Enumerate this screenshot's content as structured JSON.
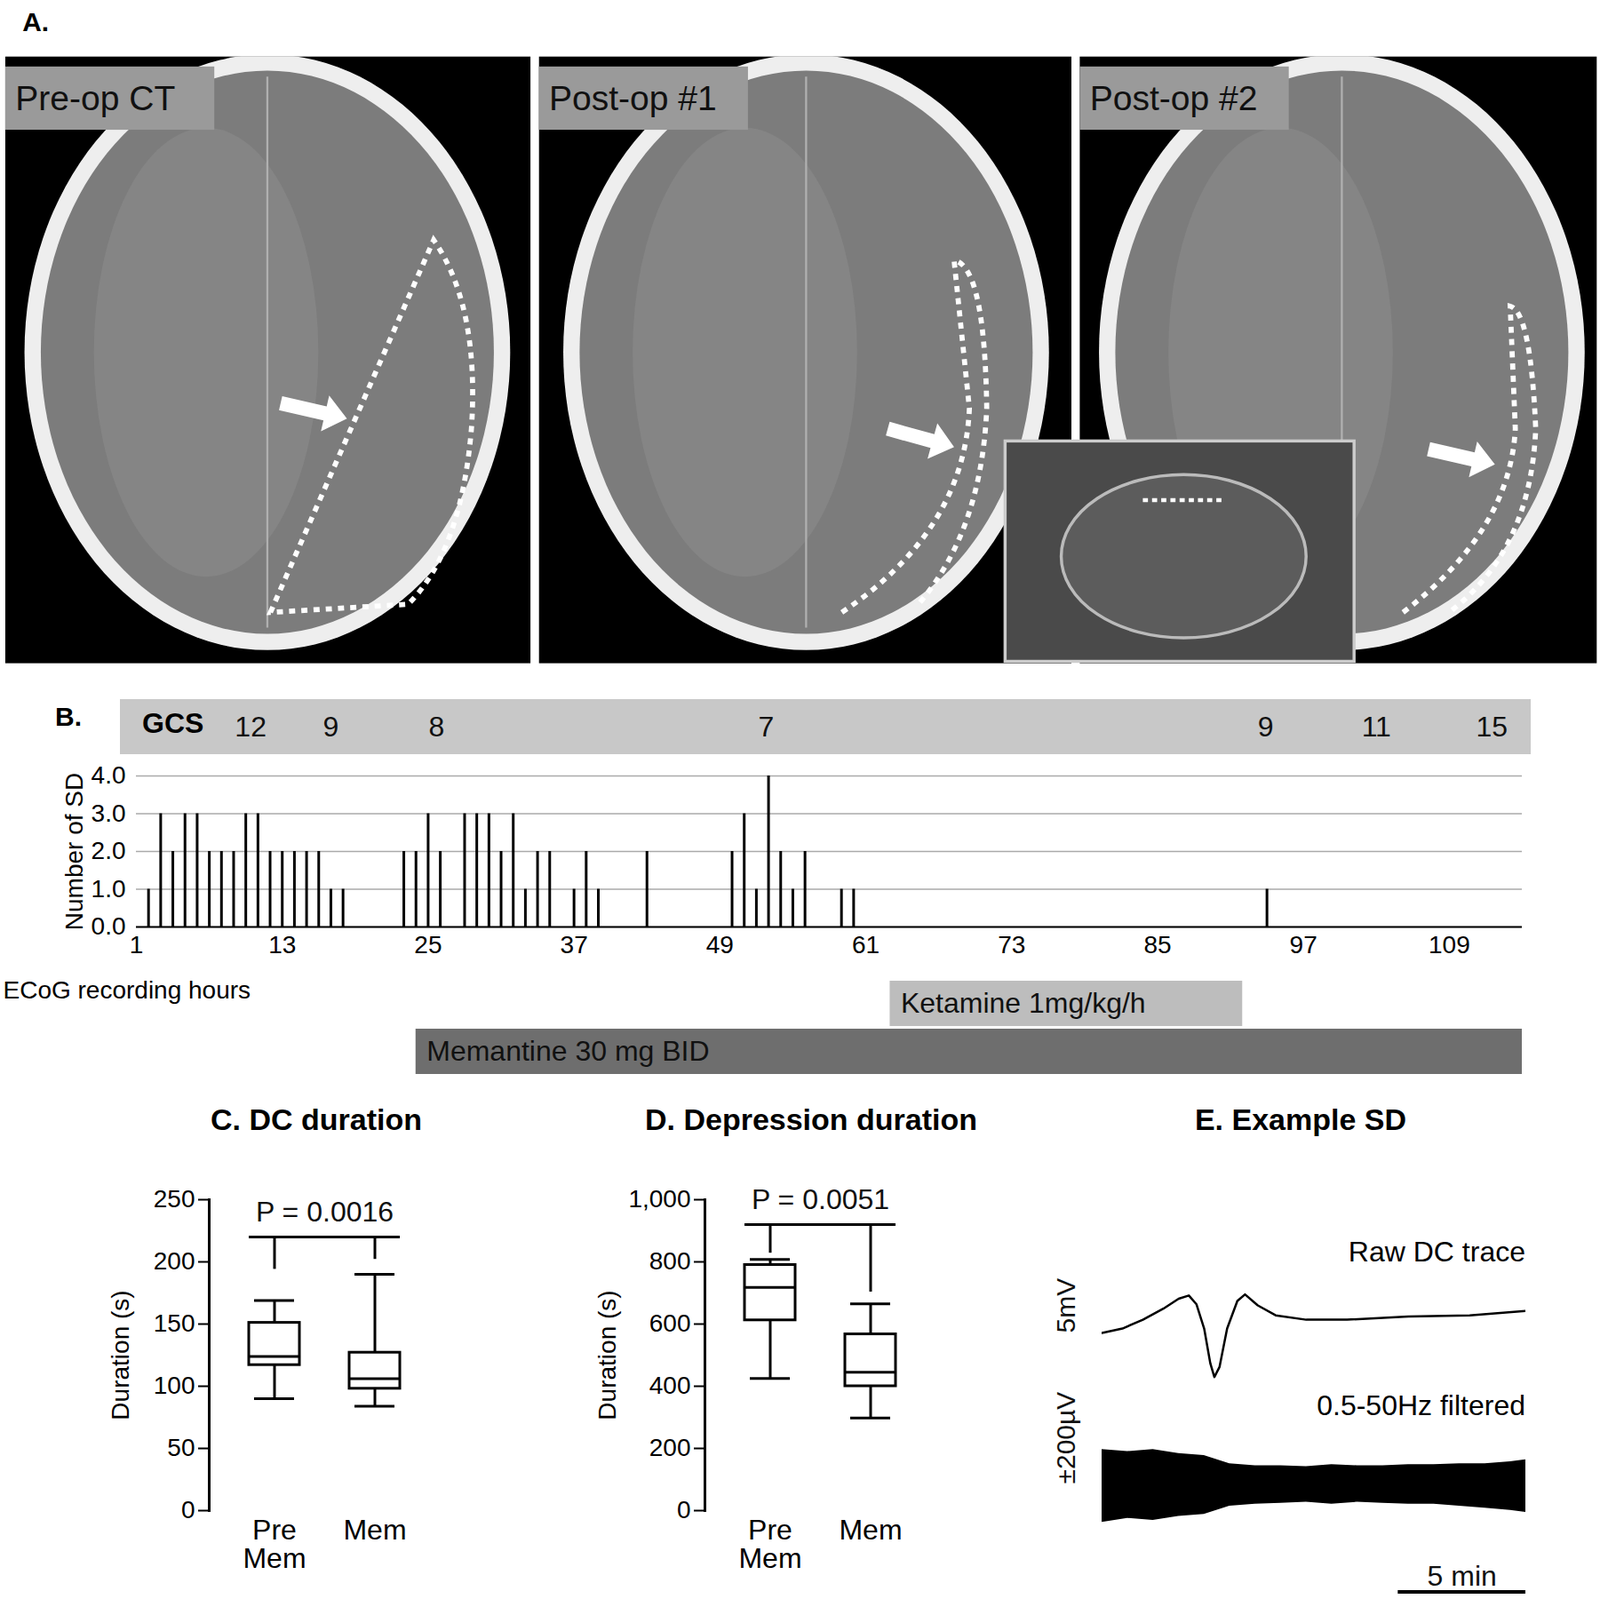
{
  "panel_a": {
    "title": "A.",
    "images": [
      {
        "label": "Pre-op CT"
      },
      {
        "label": "Post-op #1"
      },
      {
        "label": "Post-op #2"
      }
    ]
  },
  "chart_data": [
    {
      "type": "bar",
      "title": "B.",
      "x_label": "ECoG recording hours",
      "y_label": "Number of SD",
      "x": [
        2,
        3,
        4,
        5,
        6,
        7,
        8,
        9,
        10,
        11,
        12,
        13,
        14,
        15,
        16,
        17,
        18,
        23,
        24,
        25,
        26,
        28,
        29,
        30,
        31,
        32,
        33,
        34,
        35,
        37,
        38,
        39,
        43,
        50,
        51,
        52,
        53,
        54,
        55,
        56,
        59,
        60,
        94
      ],
      "values": [
        1,
        3,
        2,
        3,
        3,
        2,
        2,
        2,
        3,
        3,
        2,
        2,
        2,
        2,
        2,
        1,
        1,
        2,
        2,
        3,
        2,
        3,
        3,
        3,
        2,
        3,
        1,
        2,
        2,
        1,
        2,
        1,
        2,
        2,
        3,
        1,
        4,
        2,
        1,
        2,
        1,
        1,
        1
      ],
      "color": "#000000",
      "xlim": [
        1,
        115
      ],
      "xticks": [
        1,
        13,
        25,
        37,
        49,
        61,
        73,
        85,
        97,
        109
      ],
      "ylim": [
        0,
        4
      ],
      "yticks": [
        0,
        1,
        2,
        3,
        4
      ],
      "grid": true,
      "gcs": {
        "label": "GCS",
        "x": [
          10.4,
          17,
          25.7,
          52.8,
          93.9,
          103,
          112.5
        ],
        "values": [
          12,
          9,
          8,
          7,
          9,
          11,
          15
        ]
      },
      "treatments": [
        {
          "name": "Ketamine 1mg/kg/h",
          "start": 63,
          "end": 92,
          "color": "#bdbdbd"
        },
        {
          "name": "Memantine 30 mg BID",
          "start": 24,
          "end": 115,
          "color": "#6e6e6e"
        }
      ]
    },
    {
      "type": "box",
      "title": "C. DC duration",
      "y_label": "Duration (s)",
      "categories": [
        "Pre Mem",
        "Mem"
      ],
      "whisker_low": [
        90,
        84
      ],
      "q1": [
        117,
        98
      ],
      "median": [
        124,
        106
      ],
      "q3": [
        151,
        127
      ],
      "whisker_high": [
        169,
        190
      ],
      "color": "#000000",
      "ylim": [
        0,
        250
      ],
      "yticks": [
        0,
        50,
        100,
        150,
        200,
        250
      ],
      "annotation": {
        "text": "P = 0.0016",
        "y": 220,
        "left_end": 194,
        "right_end": 202
      }
    },
    {
      "type": "box",
      "title": "D. Depression duration",
      "y_label": "Duration (s)",
      "categories": [
        "Pre Mem",
        "Mem"
      ],
      "whisker_low": [
        425,
        298
      ],
      "q1": [
        612,
        400
      ],
      "median": [
        718,
        445
      ],
      "q3": [
        790,
        567
      ],
      "whisker_high": [
        808,
        665
      ],
      "color": "#000000",
      "ylim": [
        0,
        1000
      ],
      "yticks": [
        0,
        200,
        400,
        600,
        800,
        1000
      ],
      "annotation": {
        "text": "P = 0.0051",
        "y": 920,
        "left_end": 828,
        "right_end": 703
      }
    },
    {
      "type": "line",
      "title": "E. Example SD",
      "color": "#000000",
      "tick_labels": false,
      "xlim": [
        0,
        16.6
      ],
      "time_scale_bar": {
        "value": 5,
        "label": "5 min"
      },
      "series": [
        {
          "name": "Raw DC trace",
          "type": "line",
          "scale_label": "5mV",
          "ylim": [
            -5,
            5
          ],
          "x": [
            0,
            0.8,
            1.6,
            2.4,
            3.0,
            3.4,
            3.7,
            4.0,
            4.24,
            4.4,
            4.6,
            4.9,
            5.3,
            5.6,
            6.1,
            6.8,
            8.0,
            9.6,
            12.0,
            14.4,
            16.6
          ],
          "values": [
            0,
            0.4,
            1.2,
            2.2,
            3.1,
            3.4,
            2.6,
            0.4,
            -2.75,
            -4.0,
            -3.1,
            0.4,
            2.9,
            3.5,
            2.5,
            1.6,
            1.2,
            1.2,
            1.5,
            1.6,
            2.0
          ]
        },
        {
          "name": "0.5-50Hz filtered",
          "type": "area",
          "scale_label": "±200µV",
          "ylim": [
            -250,
            250
          ],
          "x": [
            0,
            1,
            2,
            3,
            4,
            5,
            6,
            7,
            8,
            9,
            10,
            11,
            12,
            13,
            14,
            15,
            16,
            16.6
          ],
          "low": [
            -190,
            -170,
            -180,
            -160,
            -150,
            -110,
            -100,
            -95,
            -90,
            -100,
            -90,
            -95,
            -100,
            -100,
            -110,
            -120,
            -130,
            -140
          ],
          "high": [
            170,
            160,
            170,
            150,
            140,
            100,
            90,
            90,
            85,
            95,
            90,
            90,
            95,
            95,
            100,
            100,
            110,
            120
          ]
        }
      ]
    }
  ]
}
